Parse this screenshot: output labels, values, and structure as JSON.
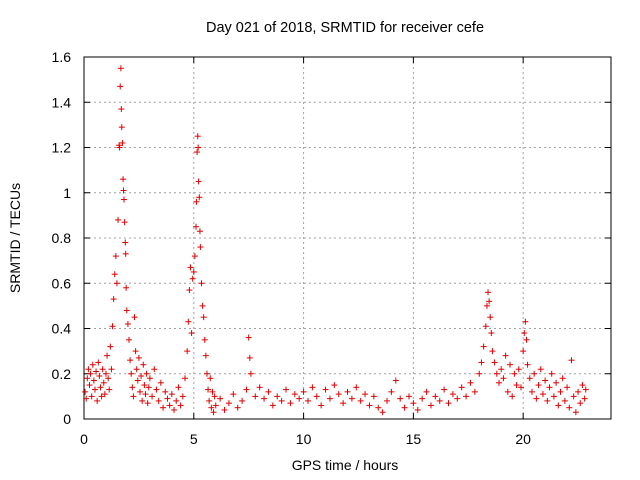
{
  "chart_data": {
    "type": "scatter",
    "title": "Day 021 of 2018, SRMTID for receiver cefe",
    "xlabel": "GPS time / hours",
    "ylabel": "SRMTID / TECUs",
    "xlim": [
      0,
      24
    ],
    "ylim": [
      0,
      1.6
    ],
    "xticks": [
      0,
      5,
      10,
      15,
      20
    ],
    "xtick_labels": [
      "0",
      "5",
      "10",
      "15",
      "20"
    ],
    "yticks": [
      0,
      0.2,
      0.4,
      0.6,
      0.8,
      1.0,
      1.2,
      1.4,
      1.6
    ],
    "ytick_labels": [
      "0",
      "0.2",
      "0.4",
      "0.6",
      "0.8",
      "1",
      "1.2",
      "1.4",
      "1.6"
    ],
    "grid": true,
    "marker": "+",
    "color": "#e00000",
    "series": [
      {
        "name": "cefe",
        "points": [
          [
            0.05,
            0.12
          ],
          [
            0.1,
            0.09
          ],
          [
            0.15,
            0.18
          ],
          [
            0.2,
            0.22
          ],
          [
            0.25,
            0.15
          ],
          [
            0.3,
            0.2
          ],
          [
            0.35,
            0.1
          ],
          [
            0.4,
            0.24
          ],
          [
            0.45,
            0.17
          ],
          [
            0.5,
            0.13
          ],
          [
            0.55,
            0.21
          ],
          [
            0.6,
            0.08
          ],
          [
            0.65,
            0.25
          ],
          [
            0.7,
            0.19
          ],
          [
            0.75,
            0.14
          ],
          [
            0.8,
            0.1
          ],
          [
            0.85,
            0.22
          ],
          [
            0.9,
            0.16
          ],
          [
            0.95,
            0.11
          ],
          [
            1.0,
            0.2
          ],
          [
            1.05,
            0.28
          ],
          [
            1.1,
            0.18
          ],
          [
            1.15,
            0.13
          ],
          [
            1.2,
            0.32
          ],
          [
            1.25,
            0.22
          ],
          [
            1.3,
            0.41
          ],
          [
            1.35,
            0.53
          ],
          [
            1.4,
            0.64
          ],
          [
            1.45,
            0.72
          ],
          [
            1.5,
            0.6
          ],
          [
            1.55,
            0.88
          ],
          [
            1.6,
            1.21
          ],
          [
            1.62,
            1.2
          ],
          [
            1.65,
            1.47
          ],
          [
            1.68,
            1.55
          ],
          [
            1.7,
            1.37
          ],
          [
            1.72,
            1.29
          ],
          [
            1.75,
            1.22
          ],
          [
            1.78,
            1.06
          ],
          [
            1.8,
            1.01
          ],
          [
            1.82,
            0.97
          ],
          [
            1.85,
            0.87
          ],
          [
            1.88,
            0.78
          ],
          [
            1.9,
            0.73
          ],
          [
            1.92,
            0.58
          ],
          [
            1.95,
            0.48
          ],
          [
            2.0,
            0.42
          ],
          [
            2.05,
            0.35
          ],
          [
            2.1,
            0.26
          ],
          [
            2.15,
            0.2
          ],
          [
            2.2,
            0.14
          ],
          [
            2.25,
            0.1
          ],
          [
            2.3,
            0.45
          ],
          [
            2.35,
            0.3
          ],
          [
            2.4,
            0.22
          ],
          [
            2.45,
            0.17
          ],
          [
            2.5,
            0.27
          ],
          [
            2.55,
            0.12
          ],
          [
            2.6,
            0.19
          ],
          [
            2.65,
            0.08
          ],
          [
            2.7,
            0.24
          ],
          [
            2.75,
            0.15
          ],
          [
            2.8,
            0.11
          ],
          [
            2.85,
            0.2
          ],
          [
            2.9,
            0.07
          ],
          [
            2.95,
            0.14
          ],
          [
            3.0,
            0.18
          ],
          [
            3.1,
            0.1
          ],
          [
            3.2,
            0.22
          ],
          [
            3.3,
            0.13
          ],
          [
            3.4,
            0.08
          ],
          [
            3.5,
            0.16
          ],
          [
            3.6,
            0.05
          ],
          [
            3.7,
            0.12
          ],
          [
            3.8,
            0.09
          ],
          [
            3.9,
            0.06
          ],
          [
            4.0,
            0.11
          ],
          [
            4.1,
            0.04
          ],
          [
            4.2,
            0.08
          ],
          [
            4.3,
            0.14
          ],
          [
            4.4,
            0.06
          ],
          [
            4.5,
            0.1
          ],
          [
            4.6,
            0.18
          ],
          [
            4.7,
            0.3
          ],
          [
            4.75,
            0.43
          ],
          [
            4.8,
            0.57
          ],
          [
            4.85,
            0.67
          ],
          [
            4.9,
            0.38
          ],
          [
            4.95,
            0.62
          ],
          [
            5.0,
            0.65
          ],
          [
            5.05,
            0.72
          ],
          [
            5.1,
            0.85
          ],
          [
            5.12,
            0.96
          ],
          [
            5.15,
            1.18
          ],
          [
            5.18,
            1.25
          ],
          [
            5.2,
            1.2
          ],
          [
            5.22,
            1.05
          ],
          [
            5.25,
            0.98
          ],
          [
            5.28,
            0.83
          ],
          [
            5.3,
            0.76
          ],
          [
            5.35,
            0.6
          ],
          [
            5.4,
            0.5
          ],
          [
            5.45,
            0.45
          ],
          [
            5.5,
            0.35
          ],
          [
            5.55,
            0.28
          ],
          [
            5.6,
            0.2
          ],
          [
            5.65,
            0.13
          ],
          [
            5.7,
            0.08
          ],
          [
            5.75,
            0.18
          ],
          [
            5.8,
            0.05
          ],
          [
            5.85,
            0.12
          ],
          [
            5.9,
            0.03
          ],
          [
            5.95,
            0.1
          ],
          [
            6.0,
            0.06
          ],
          [
            6.2,
            0.09
          ],
          [
            6.4,
            0.04
          ],
          [
            6.6,
            0.07
          ],
          [
            6.8,
            0.11
          ],
          [
            7.0,
            0.05
          ],
          [
            7.2,
            0.08
          ],
          [
            7.4,
            0.13
          ],
          [
            7.5,
            0.36
          ],
          [
            7.55,
            0.27
          ],
          [
            7.6,
            0.2
          ],
          [
            7.8,
            0.1
          ],
          [
            8.0,
            0.14
          ],
          [
            8.2,
            0.09
          ],
          [
            8.4,
            0.12
          ],
          [
            8.6,
            0.06
          ],
          [
            8.8,
            0.1
          ],
          [
            9.0,
            0.08
          ],
          [
            9.2,
            0.13
          ],
          [
            9.4,
            0.07
          ],
          [
            9.6,
            0.11
          ],
          [
            9.8,
            0.09
          ],
          [
            10.0,
            0.12
          ],
          [
            10.2,
            0.08
          ],
          [
            10.4,
            0.14
          ],
          [
            10.6,
            0.1
          ],
          [
            10.8,
            0.06
          ],
          [
            11.0,
            0.13
          ],
          [
            11.2,
            0.09
          ],
          [
            11.4,
            0.15
          ],
          [
            11.6,
            0.11
          ],
          [
            11.8,
            0.07
          ],
          [
            12.0,
            0.12
          ],
          [
            12.2,
            0.09
          ],
          [
            12.4,
            0.14
          ],
          [
            12.6,
            0.08
          ],
          [
            12.8,
            0.11
          ],
          [
            13.0,
            0.06
          ],
          [
            13.2,
            0.1
          ],
          [
            13.4,
            0.05
          ],
          [
            13.6,
            0.03
          ],
          [
            13.8,
            0.08
          ],
          [
            14.0,
            0.12
          ],
          [
            14.2,
            0.17
          ],
          [
            14.4,
            0.09
          ],
          [
            14.6,
            0.05
          ],
          [
            14.8,
            0.1
          ],
          [
            15.0,
            0.07
          ],
          [
            15.2,
            0.04
          ],
          [
            15.4,
            0.09
          ],
          [
            15.6,
            0.12
          ],
          [
            15.8,
            0.06
          ],
          [
            16.0,
            0.1
          ],
          [
            16.2,
            0.08
          ],
          [
            16.4,
            0.13
          ],
          [
            16.6,
            0.07
          ],
          [
            16.8,
            0.11
          ],
          [
            17.0,
            0.09
          ],
          [
            17.2,
            0.14
          ],
          [
            17.4,
            0.1
          ],
          [
            17.6,
            0.16
          ],
          [
            17.8,
            0.12
          ],
          [
            18.0,
            0.2
          ],
          [
            18.1,
            0.25
          ],
          [
            18.2,
            0.32
          ],
          [
            18.3,
            0.41
          ],
          [
            18.35,
            0.5
          ],
          [
            18.4,
            0.56
          ],
          [
            18.45,
            0.52
          ],
          [
            18.5,
            0.45
          ],
          [
            18.55,
            0.38
          ],
          [
            18.6,
            0.3
          ],
          [
            18.7,
            0.25
          ],
          [
            18.8,
            0.2
          ],
          [
            18.9,
            0.16
          ],
          [
            19.0,
            0.22
          ],
          [
            19.1,
            0.18
          ],
          [
            19.2,
            0.28
          ],
          [
            19.3,
            0.12
          ],
          [
            19.4,
            0.24
          ],
          [
            19.5,
            0.1
          ],
          [
            19.6,
            0.2
          ],
          [
            19.7,
            0.15
          ],
          [
            19.8,
            0.22
          ],
          [
            19.9,
            0.14
          ],
          [
            20.0,
            0.3
          ],
          [
            20.05,
            0.38
          ],
          [
            20.1,
            0.43
          ],
          [
            20.15,
            0.35
          ],
          [
            20.2,
            0.24
          ],
          [
            20.3,
            0.18
          ],
          [
            20.4,
            0.12
          ],
          [
            20.5,
            0.2
          ],
          [
            20.6,
            0.09
          ],
          [
            20.7,
            0.15
          ],
          [
            20.8,
            0.22
          ],
          [
            20.9,
            0.11
          ],
          [
            21.0,
            0.17
          ],
          [
            21.1,
            0.08
          ],
          [
            21.2,
            0.14
          ],
          [
            21.3,
            0.2
          ],
          [
            21.4,
            0.1
          ],
          [
            21.5,
            0.16
          ],
          [
            21.6,
            0.06
          ],
          [
            21.7,
            0.12
          ],
          [
            21.8,
            0.18
          ],
          [
            21.9,
            0.08
          ],
          [
            22.0,
            0.14
          ],
          [
            22.1,
            0.05
          ],
          [
            22.2,
            0.26
          ],
          [
            22.3,
            0.1
          ],
          [
            22.4,
            0.03
          ],
          [
            22.5,
            0.12
          ],
          [
            22.6,
            0.07
          ],
          [
            22.7,
            0.15
          ],
          [
            22.8,
            0.09
          ],
          [
            22.85,
            0.13
          ]
        ]
      }
    ]
  }
}
